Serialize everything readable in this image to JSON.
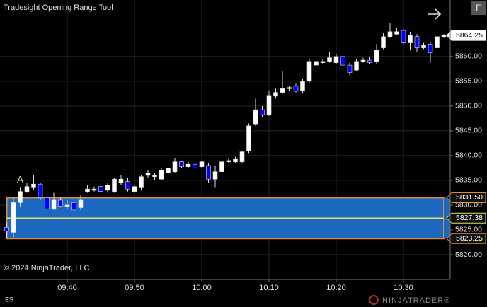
{
  "chart_data": {
    "type": "candlestick",
    "title": "Tradesight Opening Range Tool",
    "copyright": "© 2024 NinjaTrader, LLC",
    "instrument": "ES",
    "brand": "NINJATRADER®",
    "button": "F",
    "annotation": "A",
    "x": [
      "09:31",
      "09:32",
      "09:33",
      "09:34",
      "09:35",
      "09:36",
      "09:37",
      "09:38",
      "09:39",
      "09:40",
      "09:41",
      "09:42",
      "09:43",
      "09:44",
      "09:45",
      "09:46",
      "09:47",
      "09:48",
      "09:49",
      "09:50",
      "09:51",
      "09:52",
      "09:53",
      "09:54",
      "09:55",
      "09:56",
      "09:57",
      "09:58",
      "09:59",
      "10:00",
      "10:01",
      "10:02",
      "10:03",
      "10:04",
      "10:05",
      "10:06",
      "10:07",
      "10:08",
      "10:09",
      "10:10",
      "10:11",
      "10:12",
      "10:13",
      "10:14",
      "10:15",
      "10:16",
      "10:17",
      "10:18",
      "10:19",
      "10:20",
      "10:21",
      "10:22",
      "10:23",
      "10:24",
      "10:25",
      "10:26",
      "10:27",
      "10:28",
      "10:29",
      "10:30",
      "10:31",
      "10:32",
      "10:33",
      "10:34",
      "10:35",
      "10:36"
    ],
    "xticks": [
      "09:40",
      "09:50",
      "10:00",
      "10:10",
      "10:20",
      "10:30"
    ],
    "open": [
      5825.5,
      5824.5,
      5830.5,
      5832.75,
      5833.5,
      5834.25,
      5831.5,
      5829.25,
      5831,
      5829.75,
      5830.5,
      5829.5,
      5832.75,
      5833,
      5833.75,
      5833,
      5832.75,
      5834.5,
      5834.75,
      5832.75,
      5833.5,
      5836,
      5835.75,
      5835.25,
      5836.5,
      5836.75,
      5838.75,
      5837.75,
      5838.25,
      5837.75,
      5838,
      5835.25,
      5836.75,
      5838.75,
      5838.75,
      5838.75,
      5841,
      5846.25,
      5849.25,
      5848.25,
      5852,
      5852.75,
      5853.5,
      5854,
      5853,
      5855,
      5858.25,
      5858.75,
      5859,
      5858.75,
      5860,
      5858.25,
      5857.25,
      5859,
      5859.25,
      5859,
      5861.75,
      5864,
      5864.5,
      5865.25,
      5862.75,
      5864,
      5861.75,
      5862.5,
      5861.75,
      5864
    ],
    "high": [
      5826.5,
      5831.5,
      5833.5,
      5834.5,
      5836,
      5834.5,
      5832,
      5832.5,
      5831.5,
      5831,
      5831,
      5832,
      5834,
      5833.75,
      5834.25,
      5834.5,
      5835.5,
      5836,
      5835.5,
      5834,
      5836,
      5837,
      5836.5,
      5837.5,
      5838,
      5839.5,
      5839,
      5838.75,
      5838.75,
      5839,
      5838.5,
      5838,
      5841.5,
      5839.5,
      5839.75,
      5841,
      5846.5,
      5851.5,
      5850,
      5853,
      5853.5,
      5857,
      5854,
      5854.5,
      5855.5,
      5859.5,
      5862,
      5859.5,
      5861,
      5860.5,
      5860.5,
      5858.75,
      5859.5,
      5859.75,
      5860,
      5862.5,
      5864.75,
      5866.75,
      5865.75,
      5865.5,
      5865,
      5864.5,
      5862.75,
      5863,
      5864.5,
      5864.5
    ],
    "low": [
      5823.25,
      5823.5,
      5829.75,
      5832.5,
      5833,
      5831,
      5829,
      5829,
      5829.5,
      5829.25,
      5828.75,
      5829,
      5832.5,
      5832.75,
      5832.5,
      5832.5,
      5832.5,
      5834,
      5832.75,
      5832.5,
      5833,
      5835.5,
      5835,
      5835,
      5836,
      5836.5,
      5837.5,
      5837.5,
      5837.25,
      5837.5,
      5834.5,
      5833.5,
      5836.5,
      5838.5,
      5838.5,
      5838.5,
      5840.5,
      5846,
      5847.75,
      5848,
      5851.5,
      5852.5,
      5853,
      5852.75,
      5852.5,
      5854.75,
      5858,
      5858.5,
      5858.75,
      5858.5,
      5857.75,
      5856.25,
      5857,
      5858.75,
      5858.5,
      5858.5,
      5861.5,
      5863.75,
      5864.25,
      5862.5,
      5861.25,
      5861,
      5861.5,
      5858.75,
      5861.5,
      5863.75
    ],
    "close": [
      5824.75,
      5830.5,
      5832.75,
      5833.75,
      5834.25,
      5831.5,
      5829.25,
      5831,
      5829.75,
      5830,
      5829,
      5831,
      5833.25,
      5833.25,
      5832.75,
      5834,
      5835.25,
      5835.25,
      5833.25,
      5833.75,
      5835.75,
      5836.5,
      5836,
      5837,
      5837.5,
      5838.75,
      5837.75,
      5838.25,
      5837.5,
      5838.75,
      5835.25,
      5836.75,
      5838.75,
      5839,
      5839.25,
      5840.75,
      5846,
      5849.25,
      5848.25,
      5852,
      5852.75,
      5853.5,
      5853.75,
      5853,
      5855,
      5859,
      5859,
      5859,
      5859.75,
      5860,
      5858.25,
      5856.75,
      5859,
      5859.25,
      5858.75,
      5861.25,
      5864,
      5865,
      5865,
      5862.75,
      5864.25,
      5861.75,
      5862.25,
      5860.75,
      5864,
      5864.25
    ],
    "up_color": "#ffffff",
    "down_color": "#0000ff",
    "ylim": [
      5815,
      5871.4
    ],
    "yticks": [
      {
        "value": 5820,
        "label": "5820.00"
      },
      {
        "value": 5825,
        "label": "5825.00"
      },
      {
        "value": 5830,
        "label": "5830.00"
      },
      {
        "value": 5835,
        "label": "5835.00"
      },
      {
        "value": 5840,
        "label": "5840.00"
      },
      {
        "value": 5845,
        "label": "5845.00"
      },
      {
        "value": 5850,
        "label": "5850.00"
      },
      {
        "value": 5855,
        "label": "5855.00"
      },
      {
        "value": 5860,
        "label": "5860.00"
      }
    ],
    "grid": true,
    "last_price": {
      "value": 5864.25,
      "label": "5864.25"
    },
    "opening_range": {
      "high": {
        "value": 5831.5,
        "label": "5831.50"
      },
      "mid": {
        "value": 5827.38,
        "label": "5827.38"
      },
      "low": {
        "value": 5823.25,
        "label": "5823.25"
      },
      "fill": "#1a68c0",
      "border": "#e8892b",
      "mid_color": "#e8e060"
    }
  }
}
